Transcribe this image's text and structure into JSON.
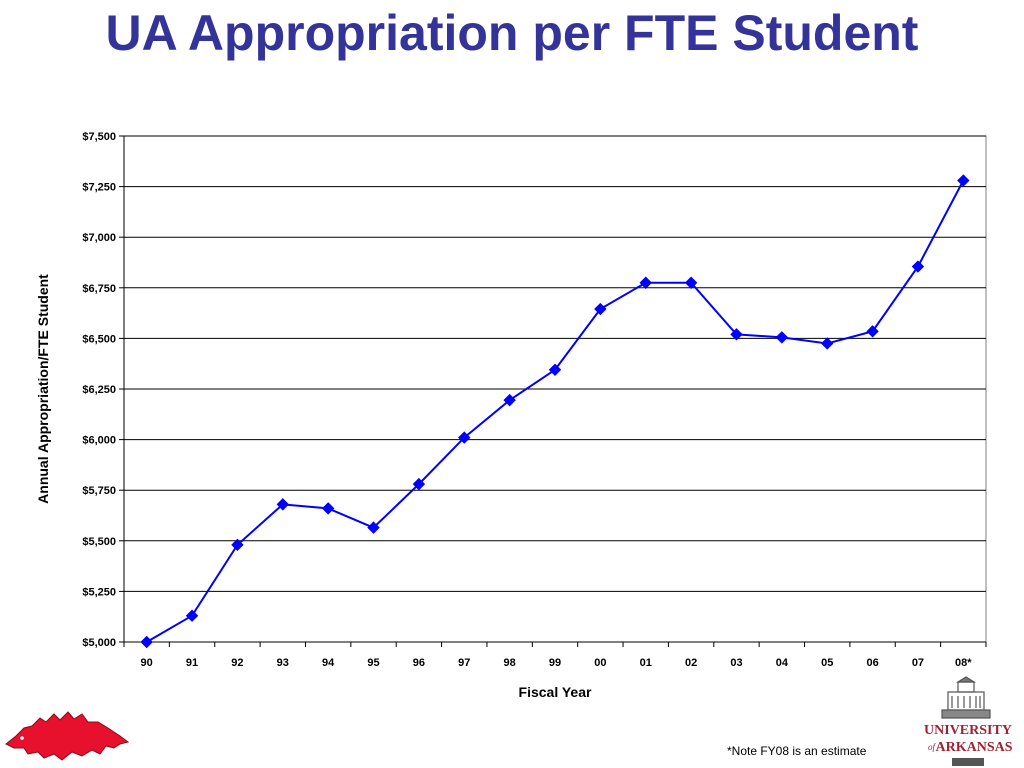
{
  "title": "UA Appropriation per FTE Student",
  "footnote": "*Note FY08 is an estimate",
  "logos": {
    "left": "razorback-logo",
    "right_text_line1": "UNIVERSITY",
    "right_text_line2": "ARKANSAS",
    "right_text_small": "of"
  },
  "colors": {
    "title": "#333399",
    "series": "#0000FF",
    "grid": "#000000",
    "razorback": "#E8112D",
    "ua_red": "#9D2235"
  },
  "chart_data": {
    "type": "line",
    "xlabel": "Fiscal Year",
    "ylabel": "Annual Appropriation/FTE Student",
    "ylim": [
      5000,
      7500
    ],
    "yticks": [
      5000,
      5250,
      5500,
      5750,
      6000,
      6250,
      6500,
      6750,
      7000,
      7250,
      7500
    ],
    "ytick_labels": [
      "$5,000",
      "$5,250",
      "$5,500",
      "$5,750",
      "$6,000",
      "$6,250",
      "$6,500",
      "$6,750",
      "$7,000",
      "$7,250",
      "$7,500"
    ],
    "grid": "horizontal",
    "legend": "none",
    "marker": "diamond",
    "categories": [
      "90",
      "91",
      "92",
      "93",
      "94",
      "95",
      "96",
      "97",
      "98",
      "99",
      "00",
      "01",
      "02",
      "03",
      "04",
      "05",
      "06",
      "07",
      "08*"
    ],
    "series": [
      {
        "values": [
          5000,
          5130,
          5480,
          5680,
          5660,
          5565,
          5780,
          6010,
          6195,
          6345,
          6645,
          6775,
          6775,
          6520,
          6505,
          6475,
          6535,
          6855,
          7280
        ]
      }
    ]
  }
}
